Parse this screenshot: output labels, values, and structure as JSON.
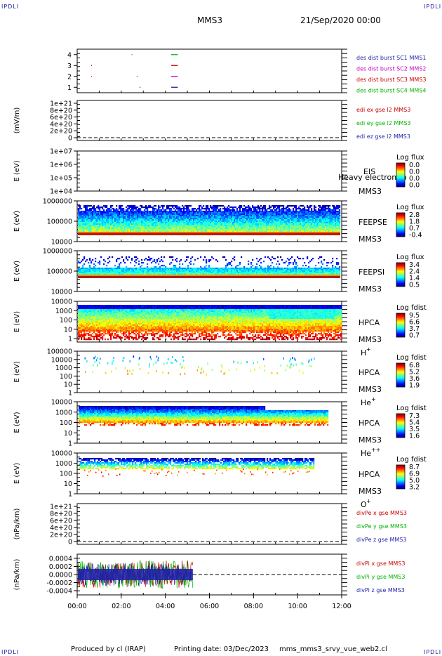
{
  "header": {
    "corner_left_top": "IPDLI",
    "corner_right_top": "IPDLI",
    "corner_left_bottom": "IPDLI",
    "corner_right_bottom": "IPDLI",
    "spacecraft": "MMS3",
    "date": "21/Sep/2020 00:00"
  },
  "footer": {
    "produced_by": "Produced by cl (IRAP)",
    "printing_date": "Printing date: 03/Dec/2023",
    "script": "mms_mms3_srvy_vue_web2.cl"
  },
  "colors": {
    "mms1": "#1e1ea8",
    "mms2": "#c800c8",
    "mms3": "#c80000",
    "mms4": "#00b400",
    "x": "#c80000",
    "y": "#00b400",
    "z": "#1e1ea8"
  },
  "chart_data": [
    {
      "type": "scatter",
      "panel": "des dist burst",
      "xlim": [
        "00:00",
        "12:00"
      ],
      "ylim": [
        0.5,
        4.5
      ],
      "yticks": [
        "1",
        "2",
        "3",
        "4"
      ],
      "series": [
        {
          "name": "des dist burst SC1 MMS1",
          "color": "#1e1ea8",
          "y": 1,
          "x": [
            [
              "02:50",
              "02:51"
            ],
            [
              "04:16",
              "04:34"
            ]
          ]
        },
        {
          "name": "des dist burst SC2 MMS2",
          "color": "#c800c8",
          "y": 2,
          "x": [
            [
              "00:38",
              "00:40"
            ],
            [
              "02:42",
              "02:43"
            ],
            [
              "04:16",
              "04:34"
            ]
          ]
        },
        {
          "name": "des dist burst SC3 MMS3",
          "color": "#c80000",
          "y": 3,
          "x": [
            [
              "00:38",
              "00:40"
            ],
            [
              "04:16",
              "04:34"
            ]
          ]
        },
        {
          "name": "des dist burst SC4 MMS4",
          "color": "#00b400",
          "y": 4,
          "x": [
            [
              "02:28",
              "02:29"
            ],
            [
              "04:16",
              "04:34"
            ]
          ]
        }
      ]
    },
    {
      "type": "line",
      "panel": "edi e-field",
      "ylabel": "(mV/m)",
      "yticks": [
        "0",
        "2e+20",
        "4e+20",
        "6e+20",
        "8e+20",
        "1e+21"
      ],
      "series": [
        {
          "name": "edi ex gse l2 MMS3",
          "color": "#c80000"
        },
        {
          "name": "edi ey gse l2 MMS3",
          "color": "#00b400"
        },
        {
          "name": "edi ez gse l2 MMS3",
          "color": "#1e1ea8"
        }
      ]
    },
    {
      "type": "heatmap",
      "panel": "EIS",
      "ylabel": "E (eV)",
      "yticks": [
        "1e+04",
        "1e+05",
        "1e+06",
        "1e+07"
      ],
      "side": [
        "EIS",
        "MMS3"
      ],
      "overlap_text": "Heavy electron to",
      "colorbar": {
        "title": "Log flux",
        "values": [
          "0.0",
          "0.0",
          "0.0",
          "0.0"
        ]
      }
    },
    {
      "type": "heatmap",
      "panel": "FEEPSE",
      "ylabel": "E (eV)",
      "yticks": [
        "10000",
        "100000",
        "1000000"
      ],
      "side": [
        "FEEPSE",
        "MMS3"
      ],
      "colorbar": {
        "title": "Log flux",
        "values": [
          "2.8",
          "1.8",
          "0.7",
          "-0.4"
        ]
      }
    },
    {
      "type": "heatmap",
      "panel": "FEEPSI",
      "ylabel": "E (eV)",
      "yticks": [
        "10000",
        "100000",
        "1000000"
      ],
      "side": [
        "FEEPSI",
        "MMS3"
      ],
      "colorbar": {
        "title": "Log flux",
        "values": [
          "3.4",
          "2.4",
          "1.4",
          "0.5"
        ]
      }
    },
    {
      "type": "heatmap",
      "panel": "HPCA H+",
      "ylabel": "E (eV)",
      "yticks": [
        "1",
        "10",
        "100",
        "1000",
        "10000"
      ],
      "side": [
        "HPCA",
        "MMS3",
        "H",
        "+"
      ],
      "colorbar": {
        "title": "Log fdist",
        "values": [
          "9.5",
          "6.6",
          "3.7",
          "0.7"
        ]
      }
    },
    {
      "type": "heatmap",
      "panel": "HPCA He+",
      "ylabel": "E (eV)",
      "yticks": [
        "1",
        "10",
        "100",
        "1000",
        "10000",
        "100000"
      ],
      "side": [
        "HPCA",
        "MMS3",
        "He",
        "+"
      ],
      "colorbar": {
        "title": "Log fdist",
        "values": [
          "6.8",
          "5.2",
          "3.6",
          "1.9"
        ]
      }
    },
    {
      "type": "heatmap",
      "panel": "HPCA He++",
      "ylabel": "E (eV)",
      "yticks": [
        "1",
        "10",
        "100",
        "1000",
        "10000"
      ],
      "side": [
        "HPCA",
        "MMS3",
        "He",
        "++"
      ],
      "colorbar": {
        "title": "Log fdist",
        "values": [
          "7.3",
          "5.4",
          "3.5",
          "1.6"
        ]
      }
    },
    {
      "type": "heatmap",
      "panel": "HPCA O+",
      "ylabel": "E (eV)",
      "yticks": [
        "1",
        "10",
        "100",
        "1000",
        "10000"
      ],
      "side": [
        "HPCA",
        "MMS3",
        "O",
        "+"
      ],
      "colorbar": {
        "title": "Log fdist",
        "values": [
          "8.7",
          "6.9",
          "5.0",
          "3.2"
        ]
      }
    },
    {
      "type": "line",
      "panel": "divPe",
      "ylabel": "(nPa/km)",
      "yticks": [
        "0",
        "2e+20",
        "4e+20",
        "6e+20",
        "8e+20",
        "1e+21"
      ],
      "series": [
        {
          "name": "divPe x gse MMS3",
          "color": "#c80000"
        },
        {
          "name": "divPe y gse MMS3",
          "color": "#00b400"
        },
        {
          "name": "divPe z gse MMS3",
          "color": "#1e1ea8"
        }
      ]
    },
    {
      "type": "line",
      "panel": "divPi",
      "ylabel": "(nPa/km)",
      "yticks": [
        "-0.0004",
        "-0.0002",
        "0.0000",
        "0.0002",
        "0.0004"
      ],
      "xticks": [
        "00:00",
        "02:00",
        "04:00",
        "06:00",
        "08:00",
        "10:00",
        "12:00"
      ],
      "series": [
        {
          "name": "divPi x gse MMS3",
          "color": "#c80000"
        },
        {
          "name": "divPi y gse MMS3",
          "color": "#00b400"
        },
        {
          "name": "divPi z gse MMS3",
          "color": "#1e1ea8"
        }
      ]
    }
  ]
}
